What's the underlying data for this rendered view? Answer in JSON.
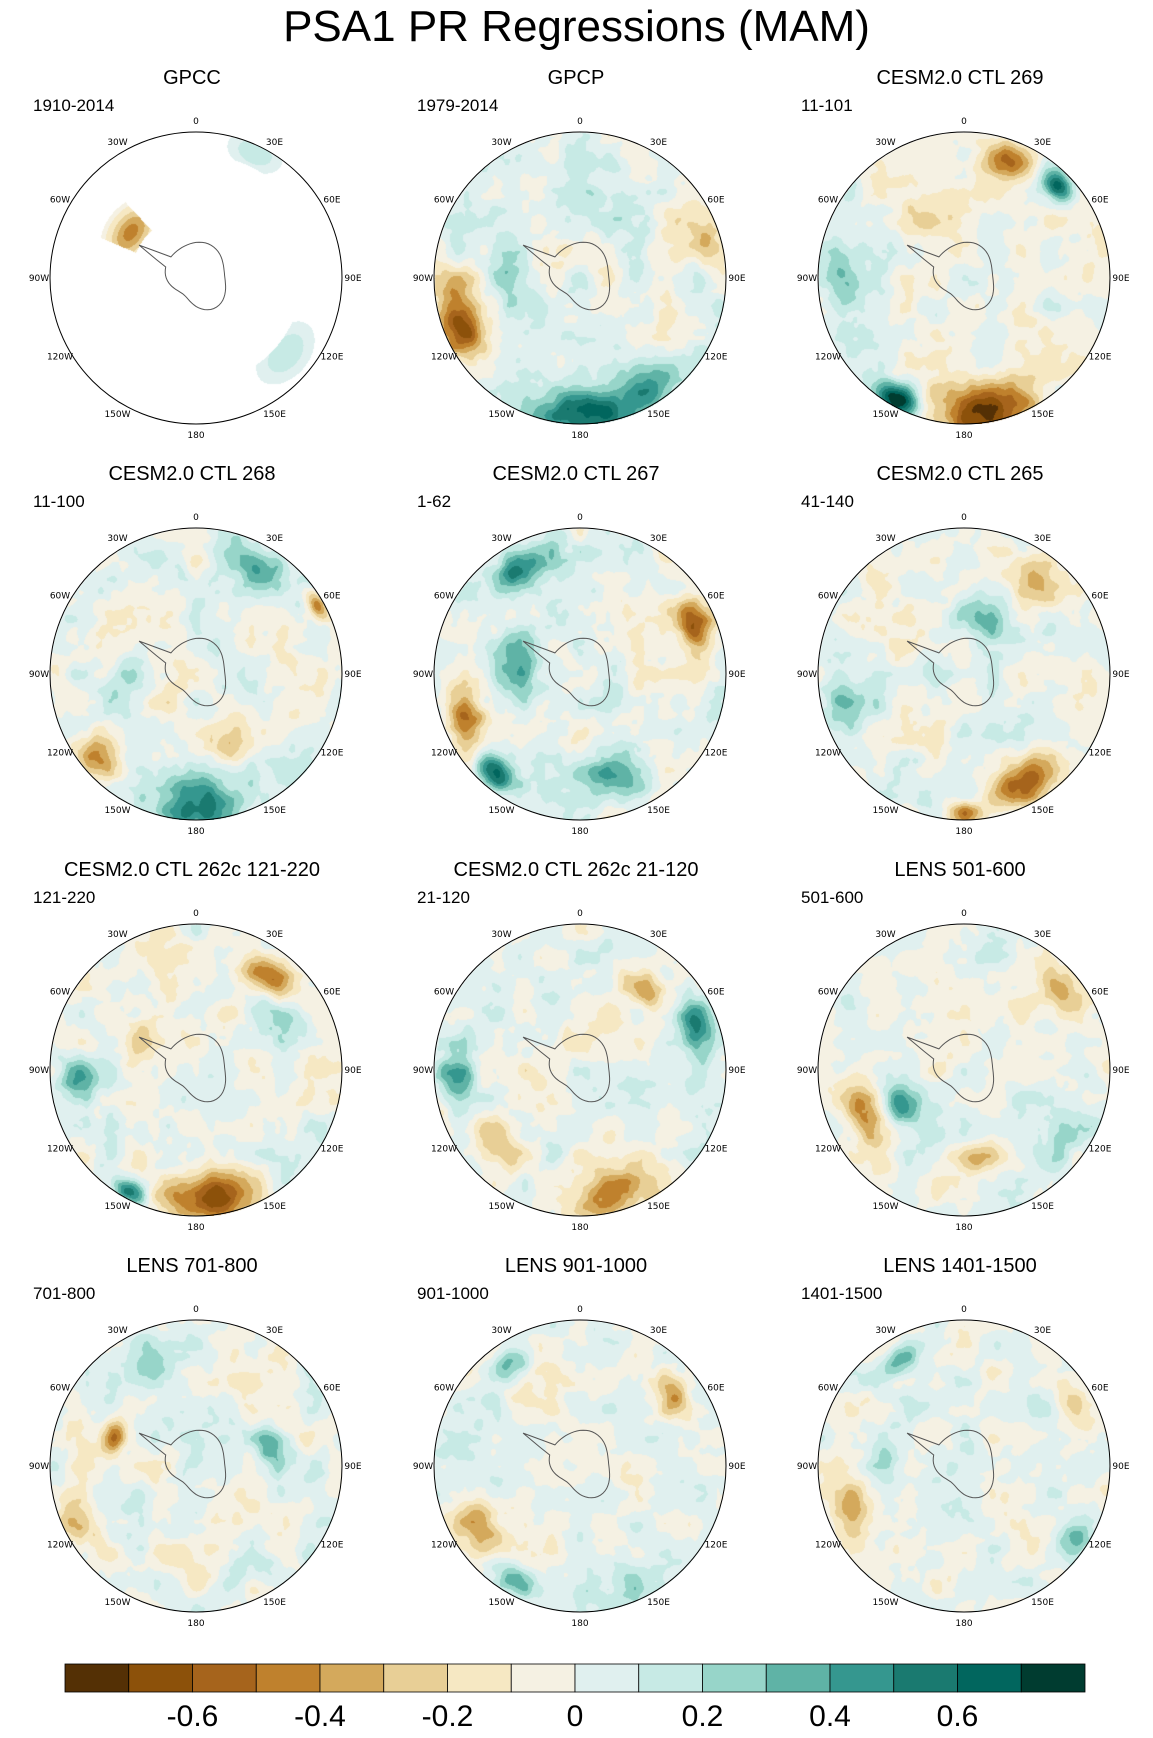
{
  "title": "PSA1 PR Regressions (MAM)",
  "lon_labels": [
    "0",
    "30E",
    "60E",
    "90E",
    "120E",
    "150E",
    "180",
    "150W",
    "120W",
    "90W",
    "60W",
    "30W"
  ],
  "panels": [
    {
      "title": "GPCC",
      "period": "1910-2014",
      "field": "gpcc"
    },
    {
      "title": "GPCP",
      "period": "1979-2014",
      "field": "gpcp"
    },
    {
      "title": "CESM2.0 CTL 269",
      "period": "11-101",
      "field": "ctl269"
    },
    {
      "title": "CESM2.0 CTL 268",
      "period": "11-100",
      "field": "ctl268"
    },
    {
      "title": "CESM2.0 CTL 267",
      "period": "1-62",
      "field": "ctl267"
    },
    {
      "title": "CESM2.0 CTL 265",
      "period": "41-140",
      "field": "ctl265"
    },
    {
      "title": "CESM2.0 CTL 262c 121-220",
      "period": "121-220",
      "field": "ctl262a"
    },
    {
      "title": "CESM2.0 CTL 262c 21-120",
      "period": "21-120",
      "field": "ctl262b"
    },
    {
      "title": "LENS 501-600",
      "period": "501-600",
      "field": "lens501"
    },
    {
      "title": "LENS 701-800",
      "period": "701-800",
      "field": "lens701"
    },
    {
      "title": "LENS 901-1000",
      "period": "901-1000",
      "field": "lens901"
    },
    {
      "title": "LENS 1401-1500",
      "period": "1401-1500",
      "field": "lens1401"
    }
  ],
  "colorbar": {
    "colors": [
      "#543005",
      "#8c510a",
      "#a6641c",
      "#bf812d",
      "#d4a95c",
      "#e8cf96",
      "#f6e8c3",
      "#f5f1e3",
      "#e0f0ef",
      "#c7eae5",
      "#97d5c9",
      "#5fb3a6",
      "#35978f",
      "#1a7a70",
      "#01665e",
      "#003c30"
    ],
    "labels": [
      "-0.6",
      "-0.4",
      "-0.2",
      "0",
      "0.2",
      "0.4",
      "0.6"
    ],
    "label_values": [
      -0.6,
      -0.4,
      -0.2,
      0,
      0.2,
      0.4,
      0.6
    ],
    "min": -0.8,
    "max": 0.8
  }
}
